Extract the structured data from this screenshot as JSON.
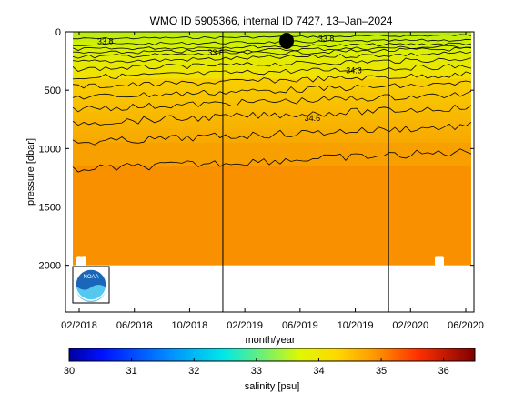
{
  "chart_data": {
    "type": "heatmap",
    "title": "WMO ID 5905366, internal ID 7427, 13–Jan–2024",
    "xlabel": "month/year",
    "ylabel": "pressure [dbar]",
    "x_ticks": [
      "02/2018",
      "06/2018",
      "10/2018",
      "02/2019",
      "06/2019",
      "10/2019",
      "02/2020",
      "06/2020"
    ],
    "y_ticks": [
      0,
      500,
      1000,
      1500,
      2000
    ],
    "ylim": [
      2400,
      0
    ],
    "x_range": [
      "01/2018",
      "06/2020"
    ],
    "year_boundaries": [
      "01/2019",
      "01/2020"
    ],
    "data_max_pressure": 2000,
    "contour_labels": [
      {
        "value": "33.8",
        "date": "02/2018",
        "pressure": 80
      },
      {
        "value": "33.8",
        "date": "10/2018",
        "pressure": 180
      },
      {
        "value": "33.8",
        "date": "06/2019",
        "pressure": 60
      },
      {
        "value": "34.3",
        "date": "08/2019",
        "pressure": 330
      },
      {
        "value": "34.6",
        "date": "05/2019",
        "pressure": 740
      }
    ],
    "salinity_layers": [
      {
        "pressure_top": 0,
        "pressure_bottom": 140,
        "salinity": 33.6
      },
      {
        "pressure_top": 140,
        "pressure_bottom": 400,
        "salinity": 34.2
      },
      {
        "pressure_top": 400,
        "pressure_bottom": 700,
        "salinity": 34.5
      },
      {
        "pressure_top": 700,
        "pressure_bottom": 1150,
        "salinity": 34.62
      },
      {
        "pressure_top": 1150,
        "pressure_bottom": 2000,
        "salinity": 34.7
      }
    ],
    "colorbar": {
      "label": "salinity [psu]",
      "min": 30,
      "max": 36.5,
      "ticks": [
        30,
        31,
        32,
        33,
        34,
        35,
        36
      ]
    }
  },
  "logo": {
    "text": "NOAA"
  },
  "colors": {
    "surface": "#c8f000",
    "upper": "#eef000",
    "mid": "#f8c800",
    "deep": "#f8a000",
    "abyss": "#f89000"
  }
}
